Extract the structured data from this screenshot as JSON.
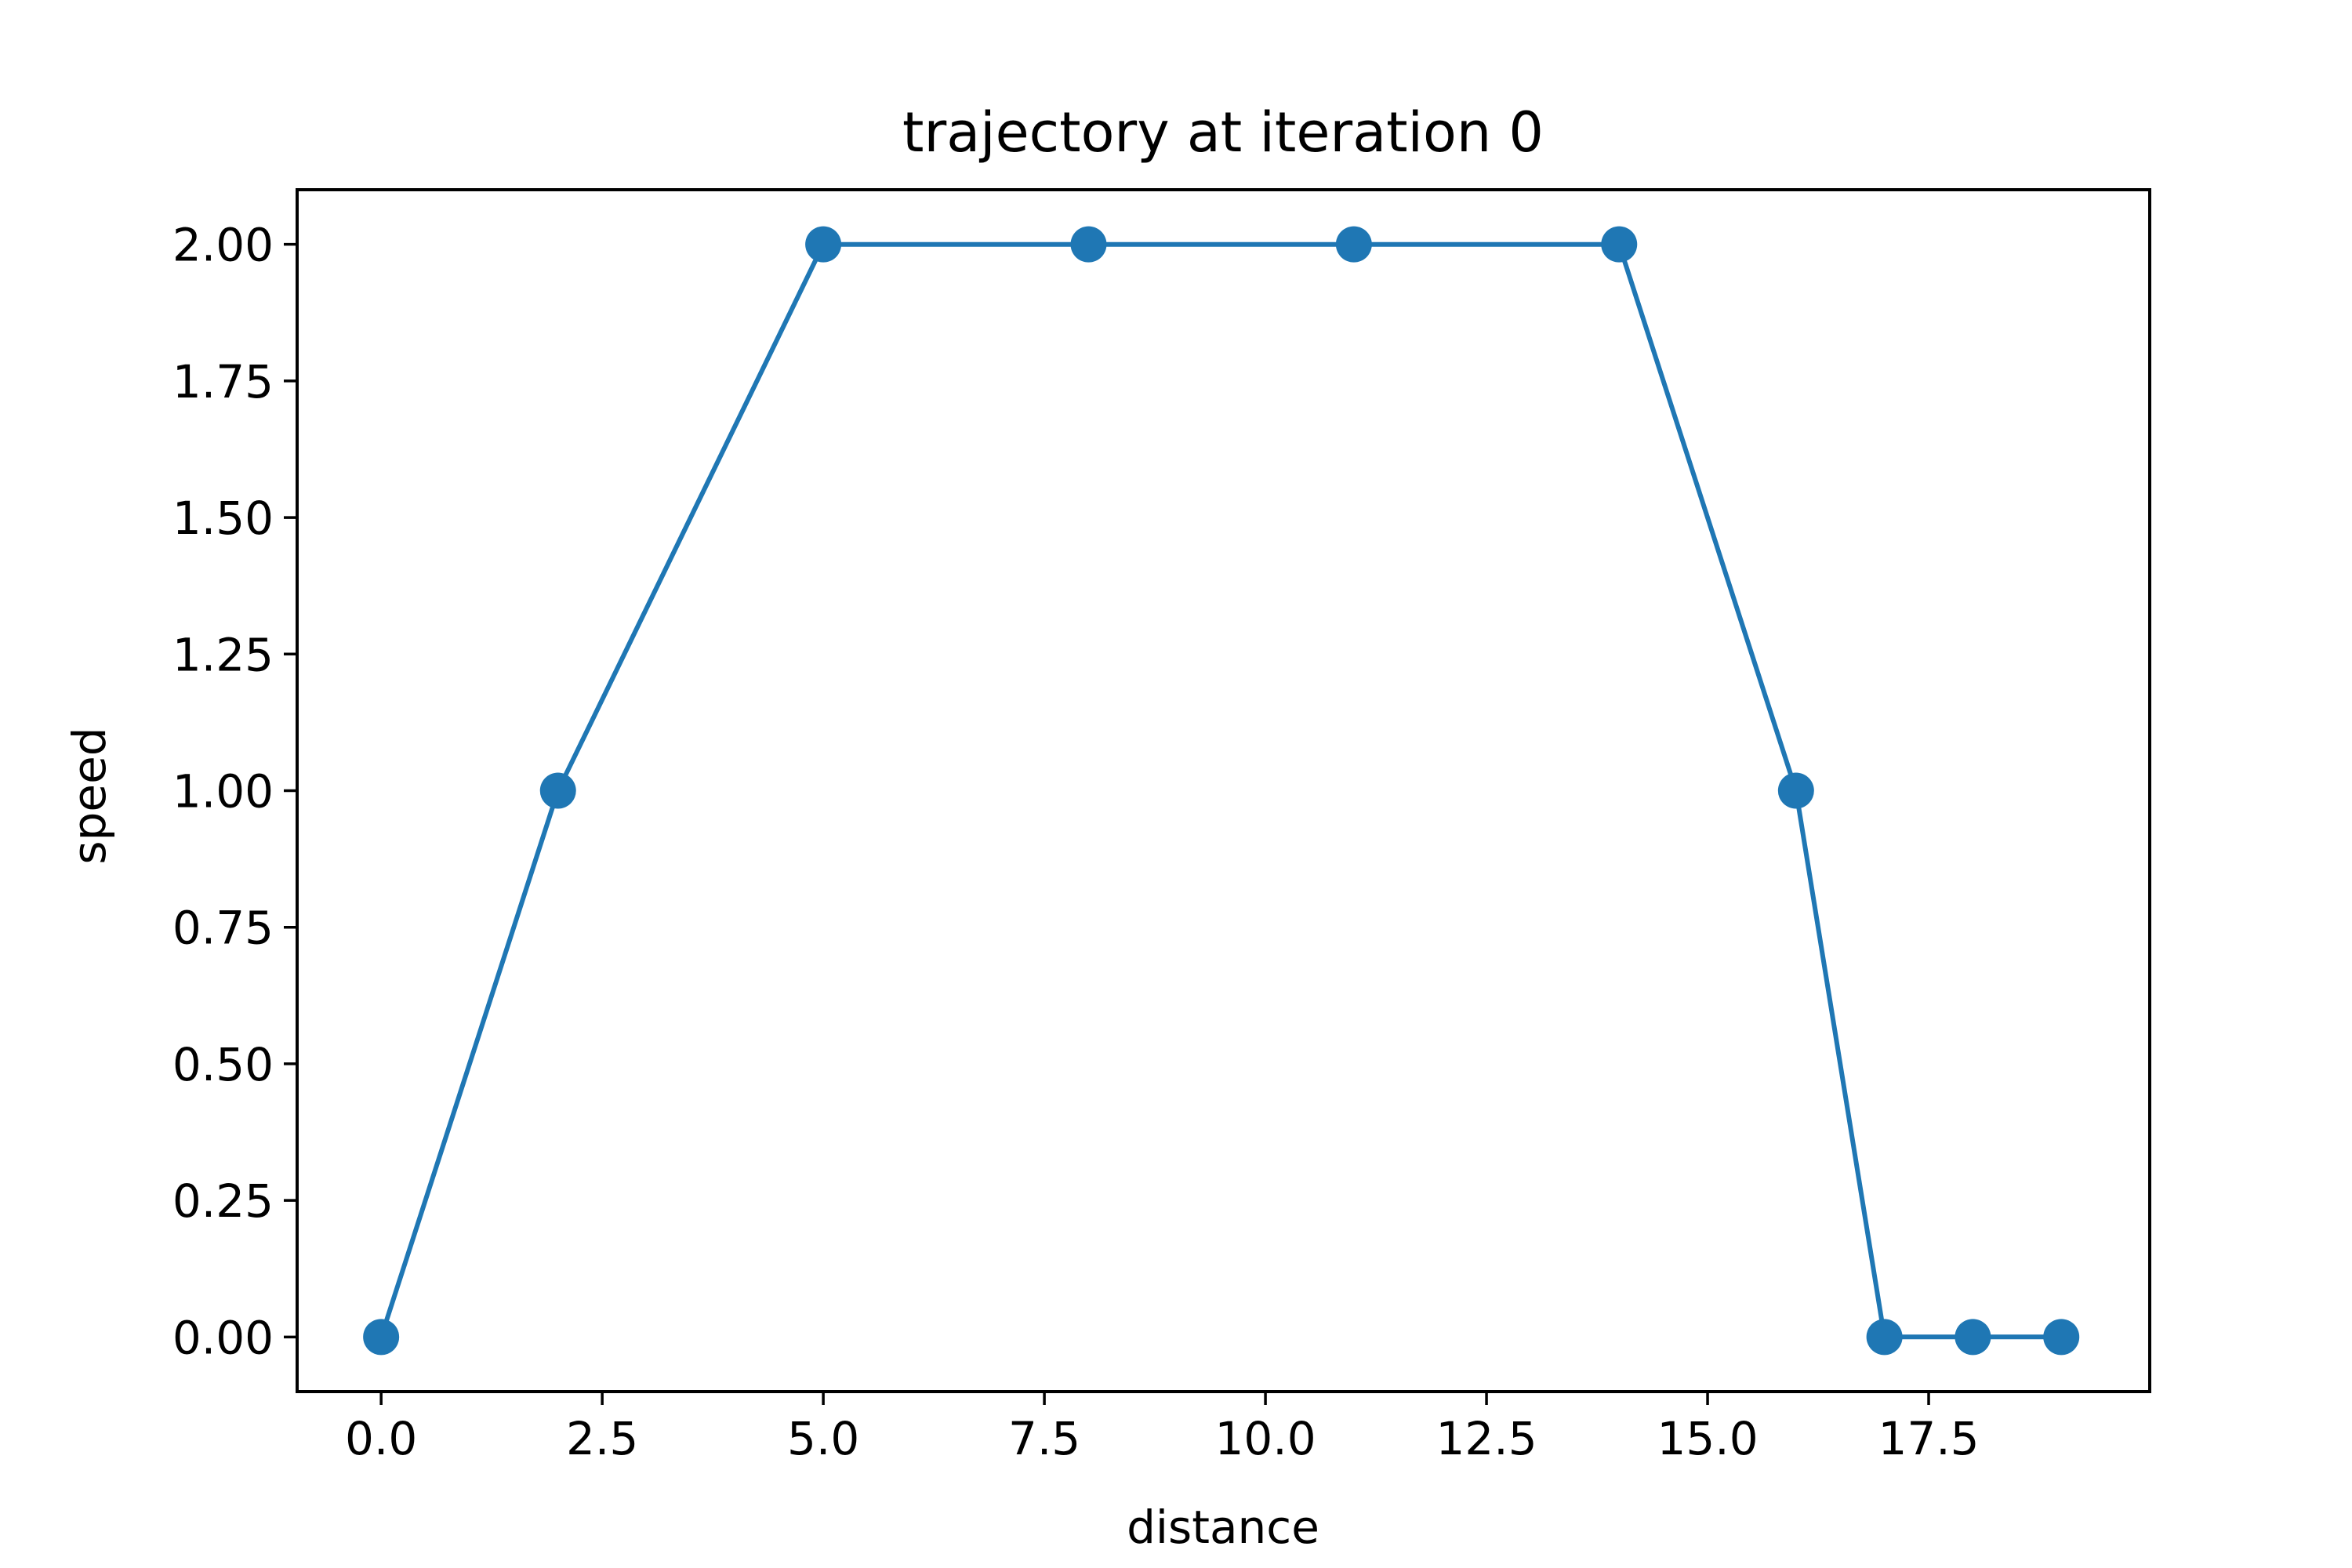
{
  "chart_data": {
    "type": "line",
    "title": "trajectory at iteration 0",
    "xlabel": "distance",
    "ylabel": "speed",
    "xlim": [
      -0.95,
      20.0
    ],
    "ylim": [
      -0.1,
      2.1
    ],
    "x_ticks": [
      0.0,
      2.5,
      5.0,
      7.5,
      10.0,
      12.5,
      15.0,
      17.5
    ],
    "x_tick_labels": [
      "0.0",
      "2.5",
      "5.0",
      "7.5",
      "10.0",
      "12.5",
      "15.0",
      "17.5"
    ],
    "y_ticks": [
      0.0,
      0.25,
      0.5,
      0.75,
      1.0,
      1.25,
      1.5,
      1.75,
      2.0
    ],
    "y_tick_labels": [
      "0.00",
      "0.25",
      "0.50",
      "0.75",
      "1.00",
      "1.25",
      "1.50",
      "1.75",
      "2.00"
    ],
    "grid": false,
    "series": [
      {
        "color": "#1f77b4",
        "marker": "circle",
        "x": [
          0,
          2,
          5,
          8,
          11,
          14,
          16,
          17,
          18,
          19
        ],
        "y": [
          0,
          1,
          2,
          2,
          2,
          2,
          1,
          0,
          0,
          0
        ]
      }
    ]
  }
}
